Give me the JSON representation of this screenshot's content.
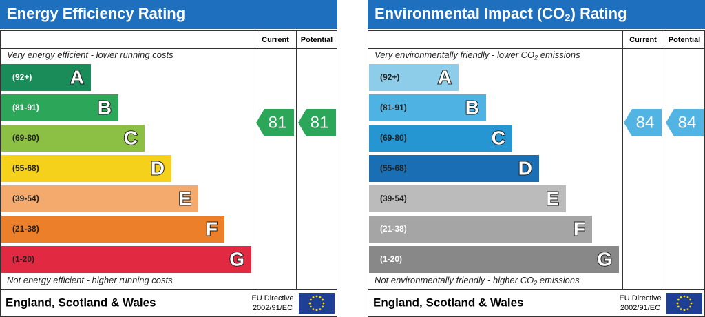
{
  "panels": [
    {
      "title": [
        "Energy Efficiency Rating"
      ],
      "columns": [
        "Current",
        "Potential"
      ],
      "top_note": [
        "Very energy efficient - lower running costs"
      ],
      "bands": [
        {
          "range": "(92+)",
          "letter": "A",
          "color": "#1a8c5a",
          "label_color": "#ffffff"
        },
        {
          "range": "(81-91)",
          "letter": "B",
          "color": "#2ca75a",
          "label_color": "#ffffff"
        },
        {
          "range": "(69-80)",
          "letter": "C",
          "color": "#8cc044",
          "label_color": "#222222"
        },
        {
          "range": "(55-68)",
          "letter": "D",
          "color": "#f5d11b",
          "label_color": "#222222"
        },
        {
          "range": "(39-54)",
          "letter": "E",
          "color": "#f3aa6c",
          "label_color": "#222222"
        },
        {
          "range": "(21-38)",
          "letter": "F",
          "color": "#ec7f2a",
          "label_color": "#222222"
        },
        {
          "range": "(1-20)",
          "letter": "G",
          "color": "#e12a42",
          "label_color": "#222222"
        }
      ],
      "current": 81,
      "potential": 81,
      "rating_color": "#2ca75a",
      "bottom_note": [
        "Not energy efficient - higher running costs"
      ],
      "footer": "England, Scotland & Wales",
      "directive": [
        "EU Directive",
        "2002/91/EC"
      ]
    },
    {
      "title": [
        "Environmental Impact (CO",
        "2",
        ") Rating"
      ],
      "columns": [
        "Current",
        "Potential"
      ],
      "top_note": [
        "Very environmentally friendly - lower CO",
        "2",
        " emissions"
      ],
      "bands": [
        {
          "range": "(92+)",
          "letter": "A",
          "color": "#8ecde9",
          "label_color": "#222222"
        },
        {
          "range": "(81-91)",
          "letter": "B",
          "color": "#4eb3e3",
          "label_color": "#222222"
        },
        {
          "range": "(69-80)",
          "letter": "C",
          "color": "#2596d1",
          "label_color": "#222222"
        },
        {
          "range": "(55-68)",
          "letter": "D",
          "color": "#1a6fb4",
          "label_color": "#222222"
        },
        {
          "range": "(39-54)",
          "letter": "E",
          "color": "#bbbbbb",
          "label_color": "#222222"
        },
        {
          "range": "(21-38)",
          "letter": "F",
          "color": "#a5a5a5",
          "label_color": "#ffffff"
        },
        {
          "range": "(1-20)",
          "letter": "G",
          "color": "#888888",
          "label_color": "#ffffff"
        }
      ],
      "current": 84,
      "potential": 84,
      "rating_color": "#52b4e3",
      "bottom_note": [
        "Not environmentally friendly - higher CO",
        "2",
        " emissions"
      ],
      "footer": "England, Scotland & Wales",
      "directive": [
        "EU Directive",
        "2002/91/EC"
      ]
    }
  ]
}
